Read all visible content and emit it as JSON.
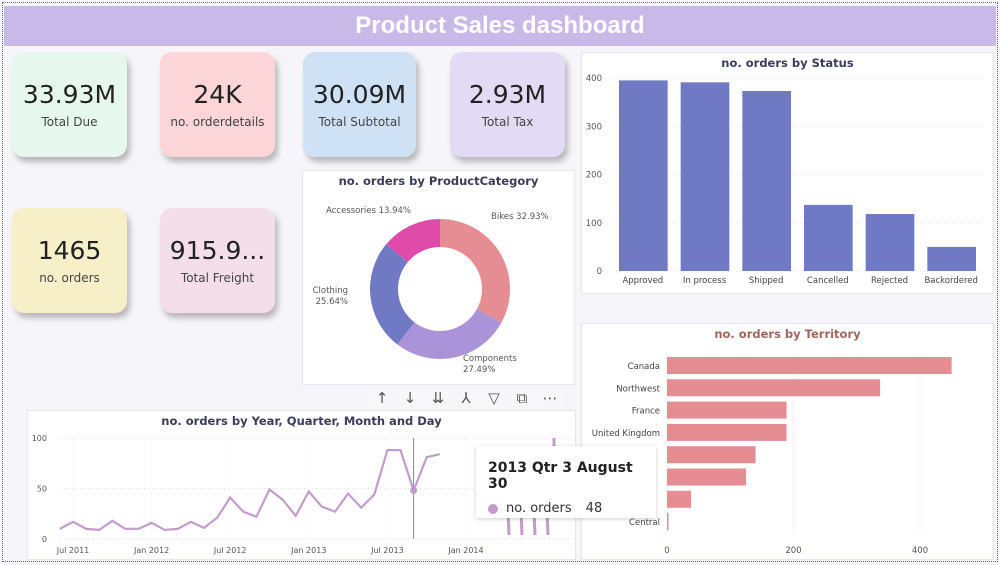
{
  "title": "Product Sales dashboard",
  "cards": [
    {
      "value": "33.93M",
      "label": "Total Due",
      "color": "#e6f7ed"
    },
    {
      "value": "24K",
      "label": "no. orderdetails",
      "color": "#fbd5d7"
    },
    {
      "value": "30.09M",
      "label": "Total Subtotal",
      "color": "#cfe2f5"
    },
    {
      "value": "2.93M",
      "label": "Total Tax",
      "color": "#e3dbf5"
    },
    {
      "value": "1465",
      "label": "no. orders",
      "color": "#f6efc8"
    },
    {
      "value": "915.9...",
      "label": "Total Freight",
      "color": "#f4dee9"
    }
  ],
  "toolbar": {
    "icons": [
      "arrow-up-icon",
      "arrow-down-icon",
      "double-arrow-down-icon",
      "expand-hierarchy-icon",
      "filter-icon",
      "focus-mode-icon",
      "more-options-icon"
    ],
    "glyphs": [
      "↑",
      "↓",
      "⇊",
      "⅄",
      "▽",
      "⧉",
      "⋯"
    ]
  },
  "tooltip": {
    "title": "2013 Qtr 3 August 30",
    "series": "no. orders",
    "value": "48"
  },
  "chart_data": [
    {
      "type": "pie",
      "title": "no. orders by ProductCategory",
      "donut": true,
      "categories": [
        "Bikes",
        "Components",
        "Clothing",
        "Accessories"
      ],
      "values": [
        32.93,
        27.49,
        25.64,
        13.94
      ],
      "labels": [
        "Bikes 32.93%",
        "Components 27.49%",
        "Clothing 25.64%",
        "Accessories 13.94%"
      ],
      "colors": [
        "#e68c93",
        "#ab93d9",
        "#6f79c4",
        "#e04aa8"
      ]
    },
    {
      "type": "bar",
      "title": "no. orders by Status",
      "categories": [
        "Approved",
        "In process",
        "Shipped",
        "Cancelled",
        "Rejected",
        "Backordered"
      ],
      "values": [
        395,
        391,
        373,
        137,
        118,
        50
      ],
      "ylim": [
        0,
        400
      ],
      "yticks": [
        0,
        100,
        200,
        300,
        400
      ],
      "color": "#6f79c4",
      "grid": true
    },
    {
      "type": "bar",
      "orientation": "horizontal",
      "title": "no. orders by Territory",
      "categories": [
        "Canada",
        "Northwest",
        "France",
        "United Kingdom",
        "",
        "",
        "",
        "Central"
      ],
      "values": [
        450,
        337,
        189,
        189,
        140,
        125,
        38,
        2
      ],
      "xlim": [
        0,
        500
      ],
      "xticks": [
        0,
        200,
        400
      ],
      "color": "#e68c93",
      "grid": true
    },
    {
      "type": "line",
      "title": "no. orders by Year, Quarter, Month and Day",
      "x": [
        "2011-06",
        "2011-07",
        "2011-08",
        "2011-09",
        "2011-10",
        "2011-11",
        "2011-12",
        "2012-01",
        "2012-02",
        "2012-03",
        "2012-04",
        "2012-05",
        "2012-06",
        "2012-07",
        "2012-08",
        "2012-09",
        "2012-10",
        "2012-11",
        "2012-12",
        "2013-01",
        "2013-02",
        "2013-03",
        "2013-04",
        "2013-05",
        "2013-06",
        "2013-07",
        "2013-08",
        "2013-09",
        "2013-10",
        "2013-11"
      ],
      "values": [
        10,
        17,
        10,
        9,
        18,
        10,
        10,
        16,
        9,
        10,
        17,
        11,
        21,
        41,
        27,
        22,
        49,
        39,
        23,
        47,
        32,
        27,
        45,
        31,
        44,
        88,
        88,
        48,
        81,
        84
      ],
      "ylim": [
        0,
        100
      ],
      "yticks": [
        0,
        50,
        100
      ],
      "xticks": [
        "Jul 2011",
        "Jan 2012",
        "Jul 2012",
        "Jan 2013",
        "Jul 2013",
        "Jan 2014"
      ],
      "color": "#c29ccb",
      "highlight": "2013-09",
      "grid": true
    }
  ]
}
